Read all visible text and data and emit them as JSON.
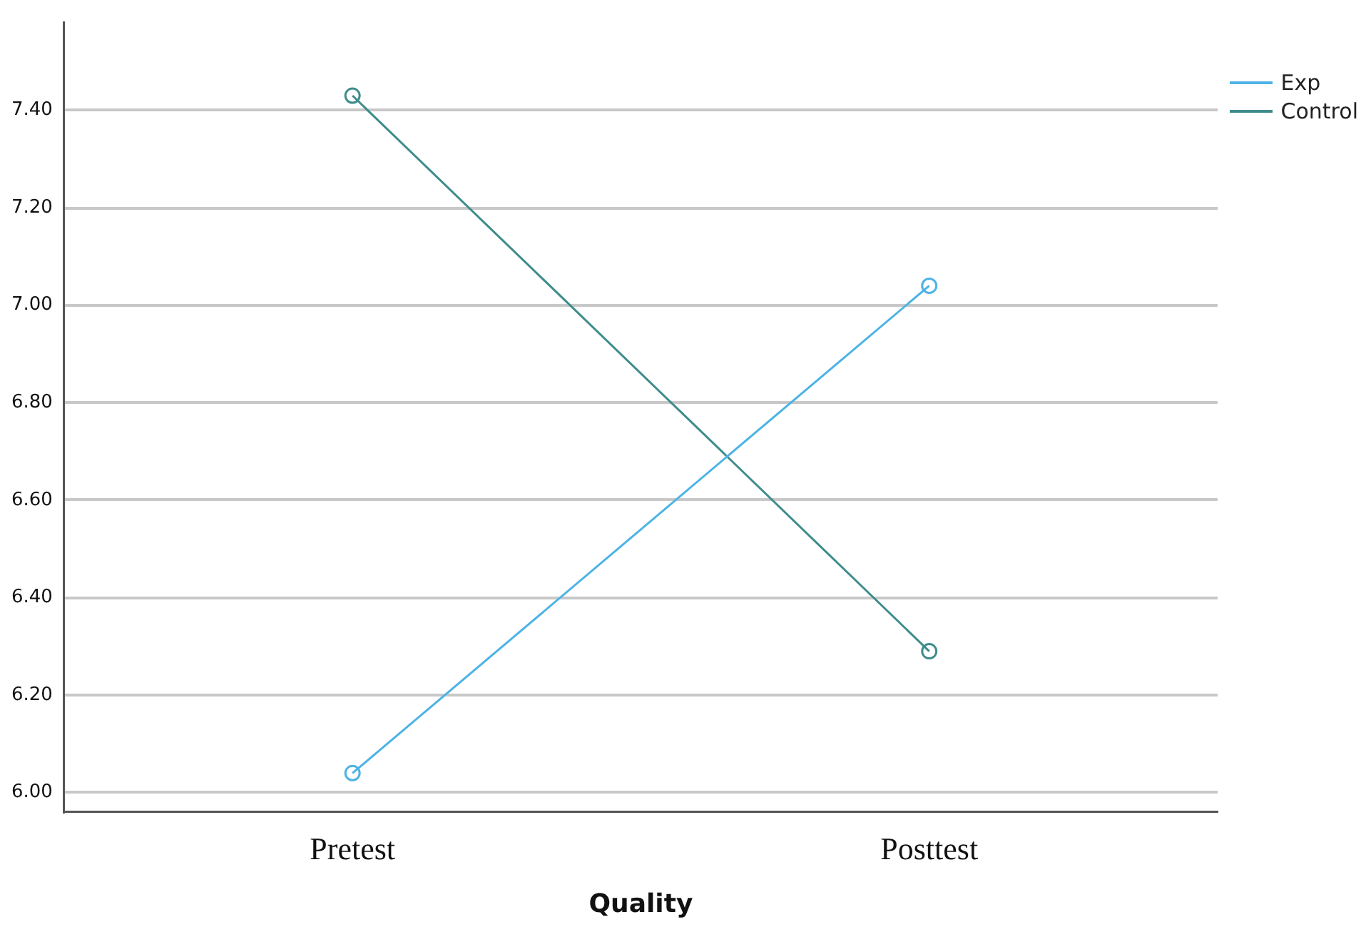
{
  "chart_data": {
    "type": "line",
    "xlabel": "Quality",
    "categories": [
      "Pretest",
      "Posttest"
    ],
    "series": [
      {
        "name": "Exp",
        "color": "#4db3e6",
        "values": [
          6.04,
          7.04
        ]
      },
      {
        "name": "Control",
        "color": "#3f8c8c",
        "values": [
          7.43,
          6.29
        ]
      }
    ],
    "ylim": [
      5.96,
      7.58
    ],
    "yticks": [
      {
        "value": 6,
        "label": "6.00"
      },
      {
        "value": 6.2,
        "label": "6.20"
      },
      {
        "value": 6.4,
        "label": "6.40"
      },
      {
        "value": 6.6,
        "label": "6.60"
      },
      {
        "value": 6.8,
        "label": "6.80"
      },
      {
        "value": 7,
        "label": "7.00"
      },
      {
        "value": 7.2,
        "label": "7.20"
      },
      {
        "value": 7.4,
        "label": "7.40"
      }
    ],
    "grid": "y",
    "legend": "top right",
    "marker": "circle",
    "line_style": "solid"
  }
}
